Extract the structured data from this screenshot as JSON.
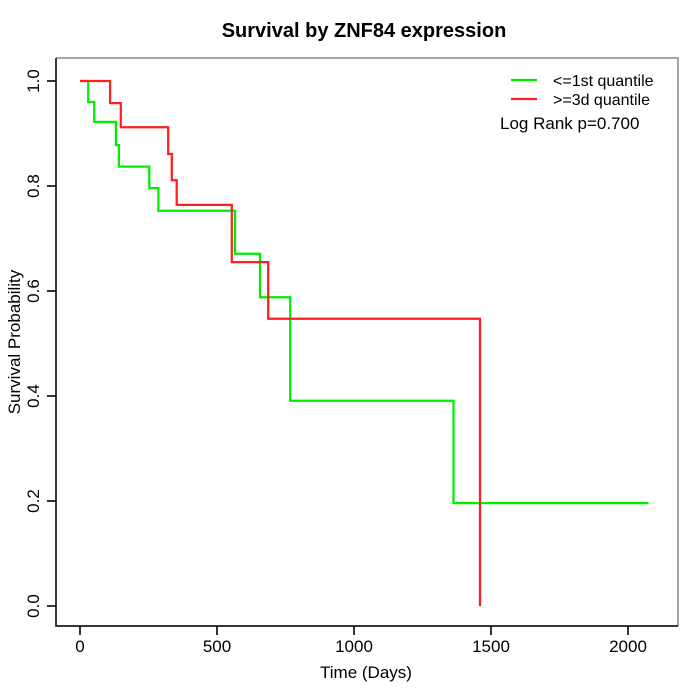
{
  "title": "Survival by ZNF84 expression",
  "x_axis": {
    "label": "Time (Days)",
    "ticks": [
      "0",
      "500",
      "1000",
      "1500",
      "2000"
    ],
    "tick_values": [
      0,
      500,
      1000,
      1500,
      2000
    ]
  },
  "y_axis": {
    "label": "Survival Probability",
    "ticks": [
      "0.0",
      "0.2",
      "0.4",
      "0.6",
      "0.8",
      "1.0"
    ],
    "tick_values": [
      0,
      0.2,
      0.4,
      0.6,
      0.8,
      1.0
    ]
  },
  "legend": {
    "entries": [
      {
        "label": "<=1st quantile",
        "color": "#00ee00"
      },
      {
        "label": ">=3d quantile",
        "color": "#ff1f1f"
      }
    ],
    "stat_note": "Log Rank p=0.700"
  },
  "chart_data": {
    "type": "line",
    "variant": "kaplan_meier_step",
    "title": "Survival by ZNF84 expression",
    "xlabel": "Time (Days)",
    "ylabel": "Survival Probability",
    "xlim": [
      0,
      2075
    ],
    "ylim": [
      0.0,
      1.0
    ],
    "grid": false,
    "legend_position": "top-right",
    "annotation": "Log Rank p=0.700",
    "series": [
      {
        "name": "<=1st quantile",
        "color": "#00ee00",
        "points": [
          [
            0,
            1.0
          ],
          [
            30,
            0.96
          ],
          [
            52,
            0.922
          ],
          [
            131,
            0.878
          ],
          [
            142,
            0.837
          ],
          [
            253,
            0.796
          ],
          [
            286,
            0.753
          ],
          [
            566,
            0.671
          ],
          [
            657,
            0.588
          ],
          [
            767,
            0.391
          ],
          [
            1363,
            0.196
          ]
        ],
        "end_time": 2075
      },
      {
        "name": ">=3d quantile",
        "color": "#ff1f1f",
        "points": [
          [
            0,
            1.0
          ],
          [
            110,
            0.958
          ],
          [
            149,
            0.912
          ],
          [
            322,
            0.861
          ],
          [
            335,
            0.811
          ],
          [
            353,
            0.764
          ],
          [
            554,
            0.655
          ],
          [
            687,
            0.547
          ],
          [
            1460,
            0.0
          ]
        ],
        "end_time": 1460
      }
    ]
  }
}
